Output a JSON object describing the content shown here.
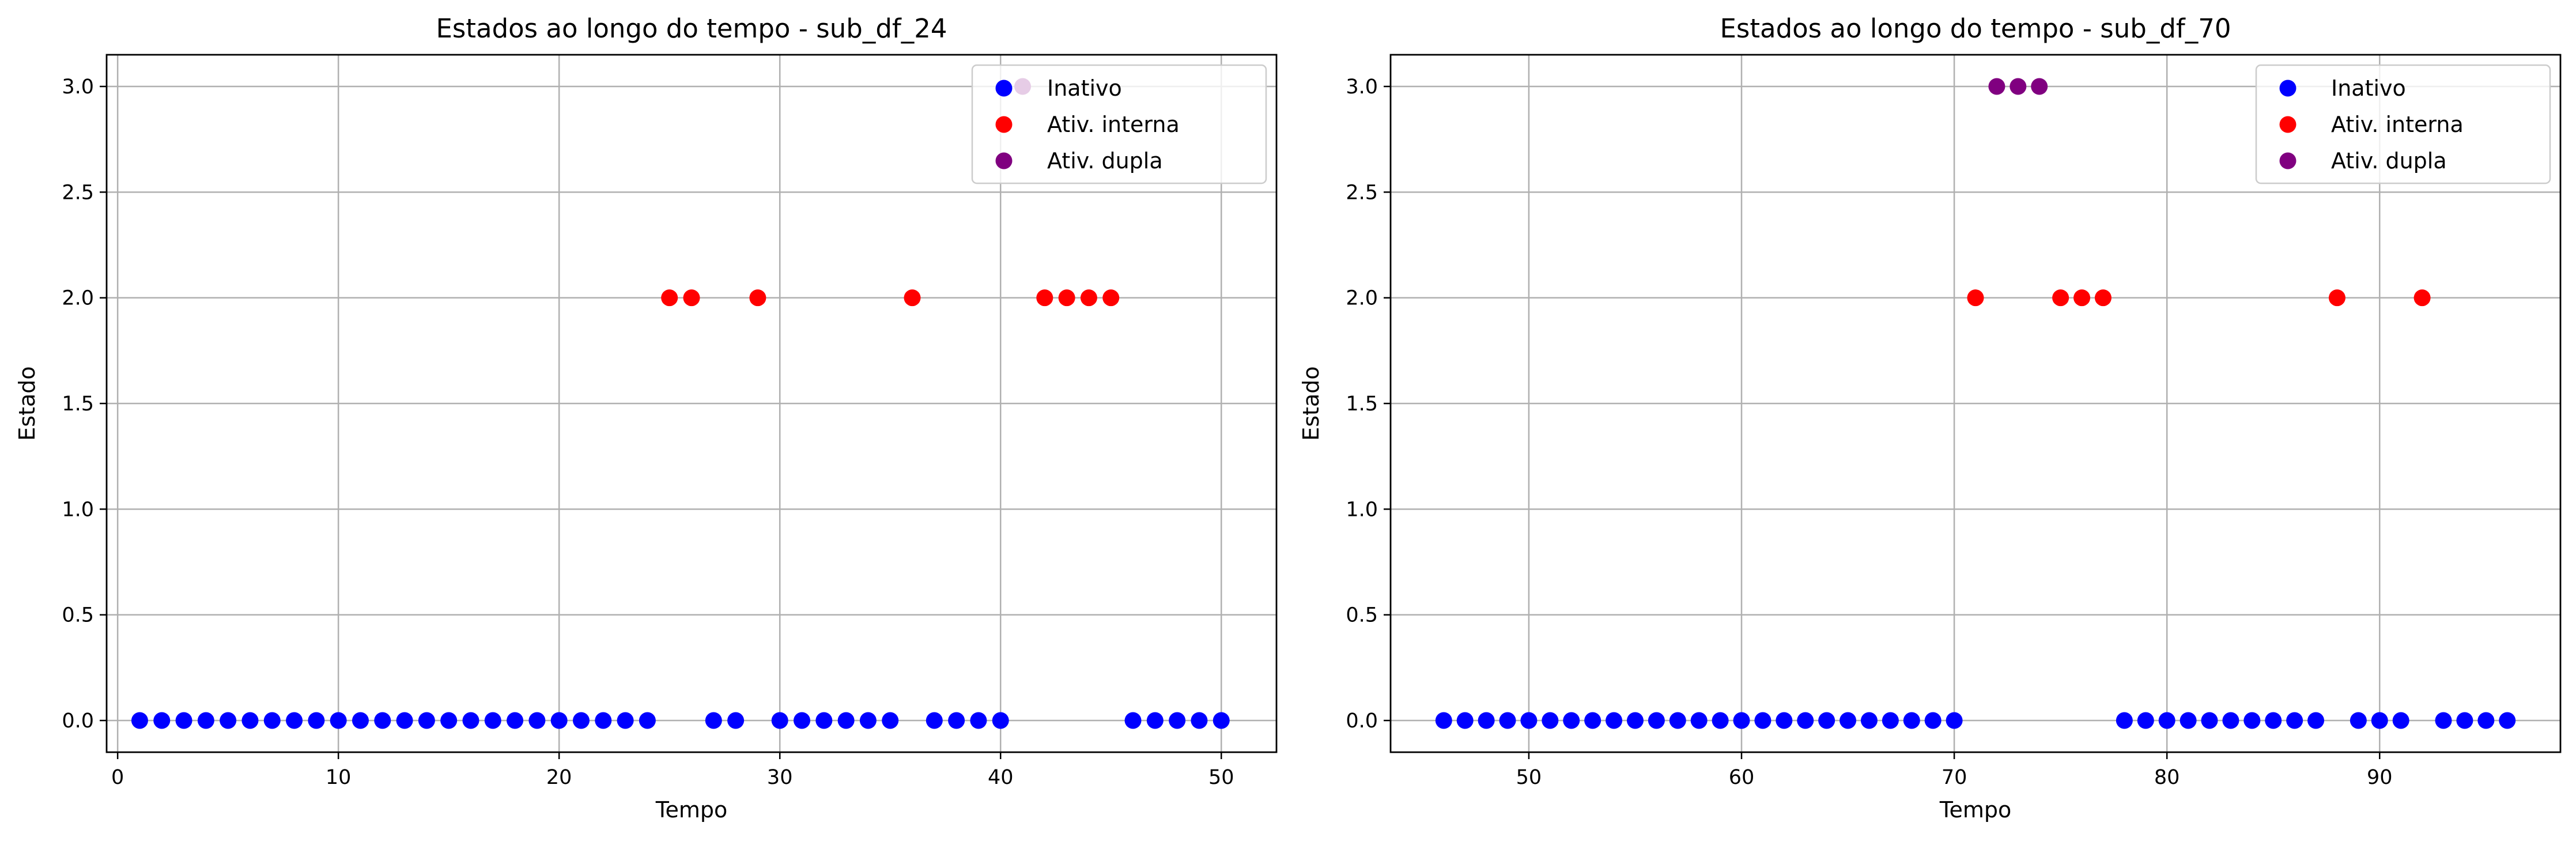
{
  "chart_data": [
    {
      "type": "scatter",
      "title": "Estados ao longo do tempo - sub_df_24",
      "xlabel": "Tempo",
      "ylabel": "Estado",
      "xlim": [
        -0.5,
        52.5
      ],
      "ylim": [
        -0.15,
        3.15
      ],
      "xticks": [
        0,
        10,
        20,
        30,
        40,
        50
      ],
      "yticks": [
        0.0,
        0.5,
        1.0,
        1.5,
        2.0,
        2.5,
        3.0
      ],
      "ytick_labels": [
        "0.0",
        "0.5",
        "1.0",
        "1.5",
        "2.0",
        "2.5",
        "3.0"
      ],
      "grid": true,
      "legend_position": "top-right",
      "series": [
        {
          "name": "Inativo",
          "color": "#0000ff",
          "y": 0,
          "x": [
            1,
            2,
            3,
            4,
            5,
            6,
            7,
            8,
            9,
            10,
            11,
            12,
            13,
            14,
            15,
            16,
            17,
            18,
            19,
            20,
            21,
            22,
            23,
            24,
            27,
            28,
            30,
            31,
            32,
            33,
            34,
            35,
            37,
            38,
            39,
            40,
            46,
            47,
            48,
            49,
            50
          ]
        },
        {
          "name": "Ativ. interna",
          "color": "#ff0000",
          "y": 2,
          "x": [
            25,
            26,
            29,
            36,
            42,
            43,
            44,
            45
          ]
        },
        {
          "name": "Ativ. dupla",
          "color": "#800080",
          "y": 3,
          "x": [
            41
          ]
        }
      ]
    },
    {
      "type": "scatter",
      "title": "Estados ao longo do tempo - sub_df_70",
      "xlabel": "Tempo",
      "ylabel": "Estado",
      "xlim": [
        43.5,
        98.5
      ],
      "ylim": [
        -0.15,
        3.15
      ],
      "xticks": [
        50,
        60,
        70,
        80,
        90
      ],
      "yticks": [
        0.0,
        0.5,
        1.0,
        1.5,
        2.0,
        2.5,
        3.0
      ],
      "ytick_labels": [
        "0.0",
        "0.5",
        "1.0",
        "1.5",
        "2.0",
        "2.5",
        "3.0"
      ],
      "grid": true,
      "legend_position": "top-right",
      "series": [
        {
          "name": "Inativo",
          "color": "#0000ff",
          "y": 0,
          "x": [
            46,
            47,
            48,
            49,
            50,
            51,
            52,
            53,
            54,
            55,
            56,
            57,
            58,
            59,
            60,
            61,
            62,
            63,
            64,
            65,
            66,
            67,
            68,
            69,
            70,
            78,
            79,
            80,
            81,
            82,
            83,
            84,
            85,
            86,
            87,
            89,
            90,
            91,
            93,
            94,
            95,
            96
          ]
        },
        {
          "name": "Ativ. interna",
          "color": "#ff0000",
          "y": 2,
          "x": [
            71,
            75,
            76,
            77,
            88,
            92
          ]
        },
        {
          "name": "Ativ. dupla",
          "color": "#800080",
          "y": 3,
          "x": [
            72,
            73,
            74
          ]
        }
      ]
    }
  ]
}
